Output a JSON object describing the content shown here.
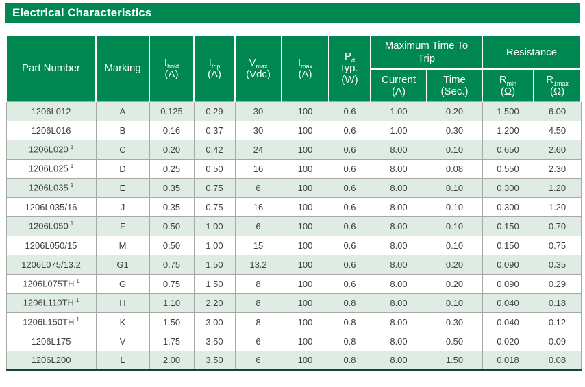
{
  "title": "Electrical Characteristics",
  "colors": {
    "brand_green": "#008752",
    "row_shade": "#dfece3",
    "grid_line": "#a7a7a7",
    "bottom_bar": "#1c4434",
    "text": "#404040"
  },
  "table": {
    "header": {
      "part": "Part Number",
      "marking": "Marking",
      "ihold": {
        "main": "I",
        "sub": "hold",
        "unit": "(A)"
      },
      "itrip": {
        "main": "I",
        "sub": "trip",
        "unit": "(A)"
      },
      "vmax": {
        "main": "V",
        "sub": "max",
        "unit": "(Vdc)"
      },
      "imax": {
        "main": "I",
        "sub": "max",
        "unit": "(A)"
      },
      "pd": {
        "main": "P",
        "sub": "d",
        "line2": "typ.",
        "unit": "(W)"
      },
      "trip_group": "Maximum Time To Trip",
      "trip_current": {
        "main": "Current",
        "unit": "(A)"
      },
      "trip_time": {
        "main": "Time",
        "unit": "(Sec.)"
      },
      "resistance_group": "Resistance",
      "rmin": {
        "main": "R",
        "sub": "min",
        "unit": "(Ω)"
      },
      "r1max": {
        "main": "R",
        "sub": "1max",
        "unit": "(Ω)"
      }
    },
    "row_fields": [
      "part",
      "marking",
      "ihold",
      "itrip",
      "vmax",
      "imax",
      "pd",
      "trip_current",
      "trip_time",
      "rmin",
      "r1max"
    ],
    "rows": [
      {
        "part": "1206L012",
        "note": "",
        "marking": "A",
        "ihold": "0.125",
        "itrip": "0.29",
        "vmax": "30",
        "imax": "100",
        "pd": "0.6",
        "trip_current": "1.00",
        "trip_time": "0.20",
        "rmin": "1.500",
        "r1max": "6.00",
        "shade": true
      },
      {
        "part": "1206L016",
        "note": "",
        "marking": "B",
        "ihold": "0.16",
        "itrip": "0.37",
        "vmax": "30",
        "imax": "100",
        "pd": "0.6",
        "trip_current": "1.00",
        "trip_time": "0.30",
        "rmin": "1.200",
        "r1max": "4.50",
        "shade": false
      },
      {
        "part": "1206L020",
        "note": "1",
        "marking": "C",
        "ihold": "0.20",
        "itrip": "0.42",
        "vmax": "24",
        "imax": "100",
        "pd": "0.6",
        "trip_current": "8.00",
        "trip_time": "0.10",
        "rmin": "0.650",
        "r1max": "2.60",
        "shade": true
      },
      {
        "part": "1206L025",
        "note": "1",
        "marking": "D",
        "ihold": "0.25",
        "itrip": "0.50",
        "vmax": "16",
        "imax": "100",
        "pd": "0.6",
        "trip_current": "8.00",
        "trip_time": "0.08",
        "rmin": "0.550",
        "r1max": "2.30",
        "shade": false
      },
      {
        "part": "1206L035",
        "note": "1",
        "marking": "E",
        "ihold": "0.35",
        "itrip": "0.75",
        "vmax": "6",
        "imax": "100",
        "pd": "0.6",
        "trip_current": "8.00",
        "trip_time": "0.10",
        "rmin": "0.300",
        "r1max": "1.20",
        "shade": true
      },
      {
        "part": "1206L035/16",
        "note": "",
        "marking": "J",
        "ihold": "0.35",
        "itrip": "0.75",
        "vmax": "16",
        "imax": "100",
        "pd": "0.6",
        "trip_current": "8.00",
        "trip_time": "0.10",
        "rmin": "0.300",
        "r1max": "1.20",
        "shade": false
      },
      {
        "part": "1206L050",
        "note": "1",
        "marking": "F",
        "ihold": "0.50",
        "itrip": "1.00",
        "vmax": "6",
        "imax": "100",
        "pd": "0.6",
        "trip_current": "8.00",
        "trip_time": "0.10",
        "rmin": "0.150",
        "r1max": "0.70",
        "shade": true
      },
      {
        "part": "1206L050/15",
        "note": "",
        "marking": "M",
        "ihold": "0.50",
        "itrip": "1.00",
        "vmax": "15",
        "imax": "100",
        "pd": "0.6",
        "trip_current": "8.00",
        "trip_time": "0.10",
        "rmin": "0.150",
        "r1max": "0.75",
        "shade": false
      },
      {
        "part": "1206L075/13.2",
        "note": "",
        "marking": "G1",
        "ihold": "0.75",
        "itrip": "1.50",
        "vmax": "13.2",
        "imax": "100",
        "pd": "0.6",
        "trip_current": "8.00",
        "trip_time": "0.20",
        "rmin": "0.090",
        "r1max": "0.35",
        "shade": true
      },
      {
        "part": "1206L075TH",
        "note": "1",
        "marking": "G",
        "ihold": "0.75",
        "itrip": "1.50",
        "vmax": "8",
        "imax": "100",
        "pd": "0.6",
        "trip_current": "8.00",
        "trip_time": "0.20",
        "rmin": "0.090",
        "r1max": "0.29",
        "shade": false
      },
      {
        "part": "1206L110TH",
        "note": "1",
        "marking": "H",
        "ihold": "1.10",
        "itrip": "2.20",
        "vmax": "8",
        "imax": "100",
        "pd": "0.8",
        "trip_current": "8.00",
        "trip_time": "0.10",
        "rmin": "0.040",
        "r1max": "0.18",
        "shade": true
      },
      {
        "part": "1206L150TH",
        "note": "1",
        "marking": "K",
        "ihold": "1.50",
        "itrip": "3.00",
        "vmax": "8",
        "imax": "100",
        "pd": "0.8",
        "trip_current": "8.00",
        "trip_time": "0.30",
        "rmin": "0.040",
        "r1max": "0.12",
        "shade": false
      },
      {
        "part": "1206L175",
        "note": "",
        "marking": "V",
        "ihold": "1.75",
        "itrip": "3.50",
        "vmax": "6",
        "imax": "100",
        "pd": "0.8",
        "trip_current": "8.00",
        "trip_time": "0.50",
        "rmin": "0.020",
        "r1max": "0.09",
        "shade": false
      },
      {
        "part": "1206L200",
        "note": "",
        "marking": "L",
        "ihold": "2.00",
        "itrip": "3.50",
        "vmax": "6",
        "imax": "100",
        "pd": "0.8",
        "trip_current": "8.00",
        "trip_time": "1.50",
        "rmin": "0.018",
        "r1max": "0.08",
        "shade": true
      }
    ]
  }
}
